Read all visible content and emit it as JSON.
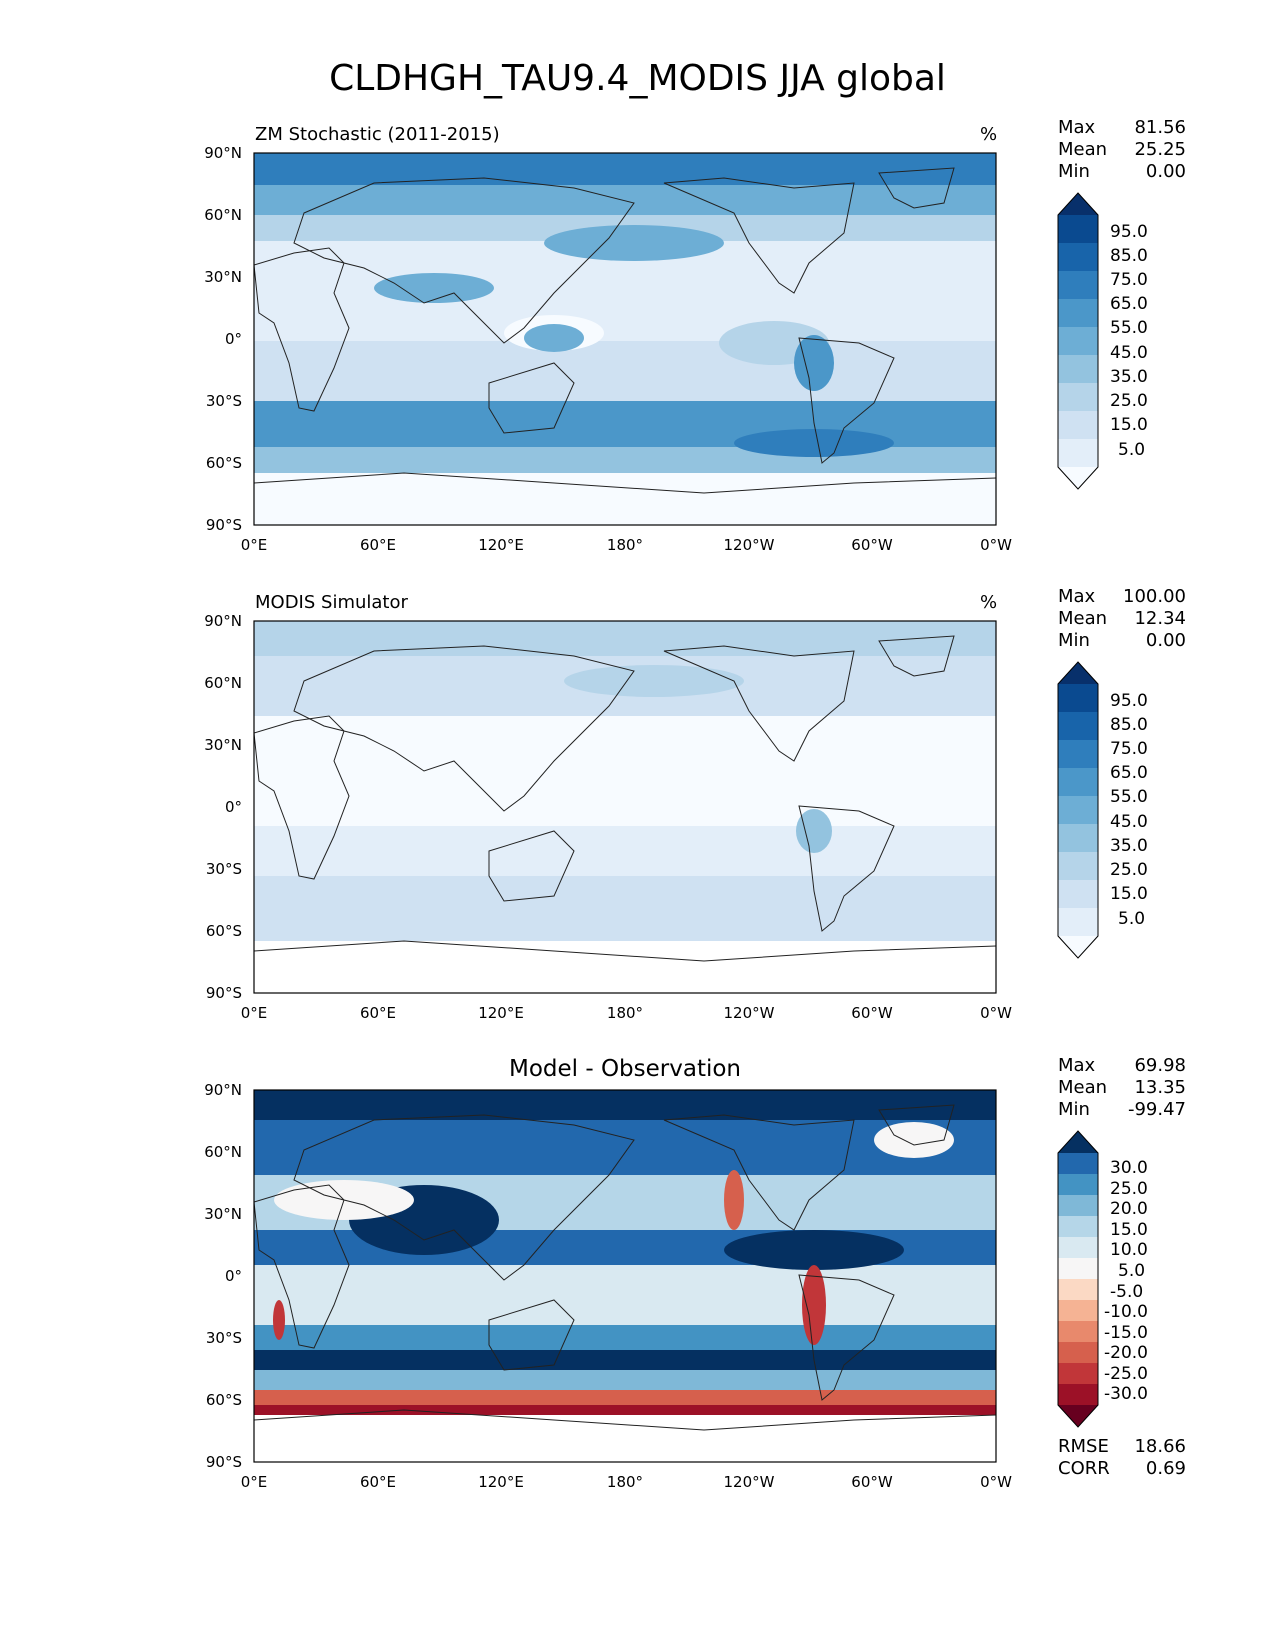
{
  "title": "CLDHGH_TAU9.4_MODIS JJA global",
  "lat_labels": [
    "90°N",
    "60°N",
    "30°N",
    "0°",
    "30°S",
    "60°S",
    "90°S"
  ],
  "lon_labels": [
    "0°E",
    "60°E",
    "120°E",
    "180°",
    "120°W",
    "60°W",
    "0°W"
  ],
  "panels": [
    {
      "title": "ZM Stochastic (2011-2015)",
      "units": "%",
      "stats": {
        "max_label": "Max",
        "max": "81.56",
        "mean_label": "Mean",
        "mean": "25.25",
        "min_label": "Min",
        "min": "0.00"
      },
      "colorbar": [
        "95.0",
        "85.0",
        "75.0",
        "65.0",
        "55.0",
        "45.0",
        "35.0",
        "25.0",
        "15.0",
        "5.0"
      ]
    },
    {
      "title": "MODIS Simulator",
      "units": "%",
      "stats": {
        "max_label": "Max",
        "max": "100.00",
        "mean_label": "Mean",
        "mean": "12.34",
        "min_label": "Min",
        "min": "0.00"
      },
      "colorbar": [
        "95.0",
        "85.0",
        "75.0",
        "65.0",
        "55.0",
        "45.0",
        "35.0",
        "25.0",
        "15.0",
        "5.0"
      ]
    },
    {
      "title": "Model - Observation",
      "units": "",
      "stats": {
        "max_label": "Max",
        "max": "69.98",
        "mean_label": "Mean",
        "mean": "13.35",
        "min_label": "Min",
        "min": "-99.47"
      },
      "colorbar": [
        "30.0",
        "25.0",
        "20.0",
        "15.0",
        "10.0",
        "5.0",
        "-5.0",
        "-10.0",
        "-15.0",
        "-20.0",
        "-25.0",
        "-30.0"
      ],
      "rmse_label": "RMSE",
      "rmse": "18.66",
      "corr_label": "CORR",
      "corr": "0.69"
    }
  ],
  "colors": {
    "blues": [
      "#f7fbff",
      "#e3eef9",
      "#cfe1f2",
      "#b5d4e9",
      "#93c3df",
      "#6daed5",
      "#4b97c9",
      "#2f7ebc",
      "#1864aa",
      "#0a4a90",
      "#08306b"
    ],
    "diff": [
      "#67001f",
      "#9c1127",
      "#c13639",
      "#d6604d",
      "#e8896c",
      "#f5b394",
      "#fbd9c4",
      "#f7f6f6",
      "#d9e9f1",
      "#b5d6e8",
      "#7fb8d7",
      "#4393c3",
      "#2268ad",
      "#053061"
    ]
  }
}
